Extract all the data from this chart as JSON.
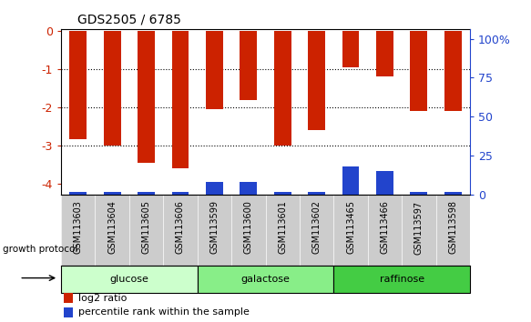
{
  "title": "GDS2505 / 6785",
  "samples": [
    "GSM113603",
    "GSM113604",
    "GSM113605",
    "GSM113606",
    "GSM113599",
    "GSM113600",
    "GSM113601",
    "GSM113602",
    "GSM113465",
    "GSM113466",
    "GSM113597",
    "GSM113598"
  ],
  "log2_ratio": [
    -2.85,
    -3.0,
    -3.45,
    -3.6,
    -2.05,
    -1.82,
    -3.0,
    -2.6,
    -0.95,
    -1.2,
    -2.1,
    -2.1
  ],
  "percentile_rank": [
    2,
    2,
    2,
    2,
    8,
    8,
    2,
    2,
    18,
    15,
    2,
    2
  ],
  "groups": [
    {
      "label": "glucose",
      "start": 0,
      "end": 4,
      "color": "#ccffcc"
    },
    {
      "label": "galactose",
      "start": 4,
      "end": 8,
      "color": "#88ee88"
    },
    {
      "label": "raffinose",
      "start": 8,
      "end": 12,
      "color": "#44cc44"
    }
  ],
  "group_protocol_label": "growth protocol",
  "ylim_left": [
    -4.3,
    0.05
  ],
  "ylim_right": [
    0,
    106.25
  ],
  "yticks_left": [
    0,
    -1,
    -2,
    -3,
    -4
  ],
  "yticks_right": [
    0,
    25,
    50,
    75,
    100
  ],
  "ytick_labels_right": [
    "0",
    "25",
    "50",
    "75",
    "100%"
  ],
  "bar_color": "#cc2200",
  "percentile_color": "#2244cc",
  "background_color": "#ffffff",
  "tick_label_color_left": "#cc2200",
  "tick_label_color_right": "#2244cc",
  "bar_width": 0.5,
  "gray_bg": "#cccccc"
}
